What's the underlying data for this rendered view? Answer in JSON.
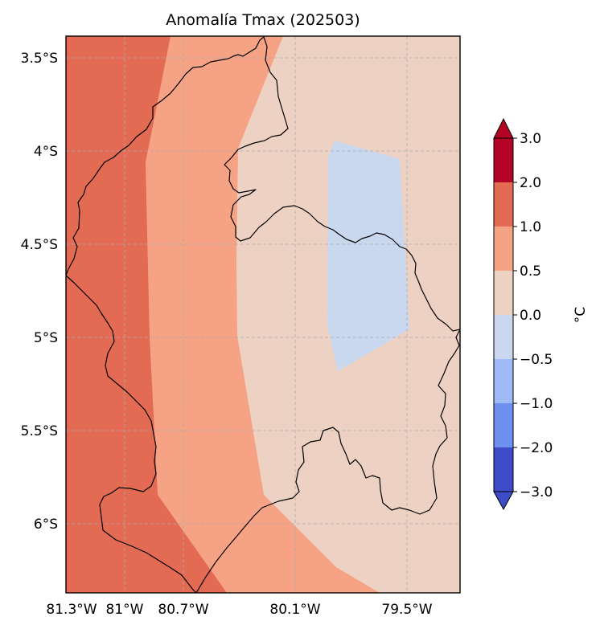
{
  "title": "Anomalía Tmax (202503)",
  "colors": {
    "red_2_3": "#b40426",
    "red_1_2": "#e36a53",
    "salmon_05_1": "#f6a385",
    "beige_0_05": "#edd2c4",
    "lightblue_m05_0": "#c9d7ef",
    "blue_m1_m05": "#9ebbf8",
    "blue_m2_m1": "#6e91f0",
    "blue_m3_m2": "#3d4cc6",
    "gridline": "#aaaaaa",
    "border": "#000000"
  },
  "lat_labels": [
    "3.5°S",
    "4°S",
    "4.5°S",
    "5°S",
    "5.5°S",
    "6°S"
  ],
  "lon_labels": [
    "81.3°W",
    "81°W",
    "80.7°W",
    "80.1°W",
    "79.5°W"
  ],
  "colorbar": {
    "unit": "°C",
    "ticks": [
      "3.0",
      "2.0",
      "1.0",
      "0.5",
      "0.0",
      "−0.5",
      "−1.0",
      "−2.0",
      "−3.0"
    ],
    "extend": "both"
  }
}
